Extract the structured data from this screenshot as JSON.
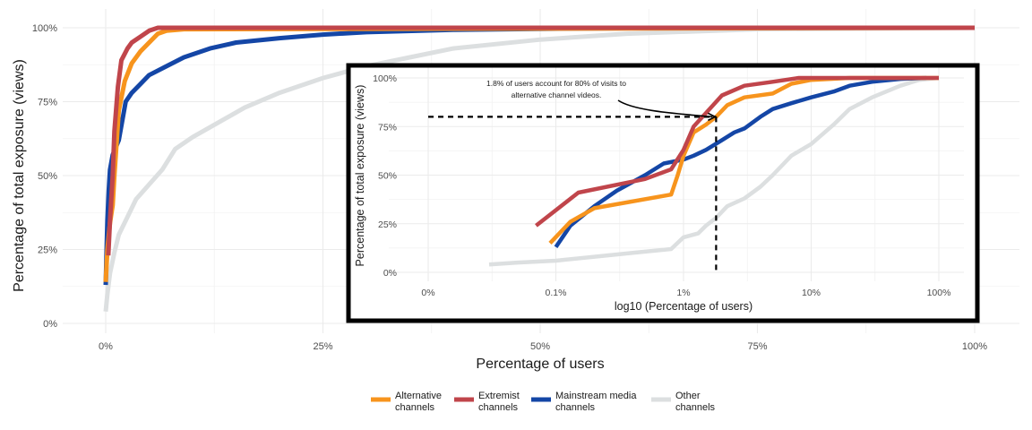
{
  "chart_data": [
    {
      "type": "line",
      "xlabel": "Percentage of users",
      "ylabel": "Percentage of total exposure (views)",
      "xlim": [
        0,
        100
      ],
      "ylim": [
        0,
        100
      ],
      "x_ticks": [
        0,
        25,
        50,
        75,
        100
      ],
      "x_tick_labels": [
        "0%",
        "25%",
        "50%",
        "75%",
        "100%"
      ],
      "y_ticks": [
        0,
        25,
        50,
        75,
        100
      ],
      "y_tick_labels": [
        "0%",
        "25%",
        "50%",
        "75%",
        "100%"
      ],
      "grid": true,
      "legend_position": "bottom",
      "series": [
        {
          "name": "Other channels",
          "color": "#dcdfe0",
          "points": [
            [
              0,
              4
            ],
            [
              0.2,
              10
            ],
            [
              0.5,
              17
            ],
            [
              1,
              24
            ],
            [
              1.5,
              30
            ],
            [
              2.5,
              36
            ],
            [
              3.5,
              42
            ],
            [
              5,
              47
            ],
            [
              6.5,
              52
            ],
            [
              8,
              59
            ],
            [
              10,
              63
            ],
            [
              13,
              68
            ],
            [
              16,
              73
            ],
            [
              20,
              78
            ],
            [
              25,
              83
            ],
            [
              30,
              87
            ],
            [
              35,
              90
            ],
            [
              40,
              93
            ],
            [
              50,
              96
            ],
            [
              60,
              98
            ],
            [
              75,
              99.5
            ],
            [
              100,
              100
            ]
          ]
        },
        {
          "name": "Mainstream media channels",
          "color": "#1446a6",
          "points": [
            [
              0,
              13
            ],
            [
              0.1,
              25
            ],
            [
              0.2,
              35
            ],
            [
              0.35,
              45
            ],
            [
              0.5,
              52
            ],
            [
              0.8,
              57
            ],
            [
              1.5,
              62
            ],
            [
              2.3,
              75
            ],
            [
              3,
              78
            ],
            [
              4,
              81
            ],
            [
              5,
              84
            ],
            [
              7,
              87
            ],
            [
              9,
              90
            ],
            [
              12,
              93
            ],
            [
              15,
              95
            ],
            [
              20,
              96.5
            ],
            [
              25,
              97.7
            ],
            [
              30,
              98.5
            ],
            [
              40,
              99.3
            ],
            [
              55,
              99.8
            ],
            [
              75,
              100
            ],
            [
              100,
              100
            ]
          ]
        },
        {
          "name": "Alternative channels",
          "color": "#f7941d",
          "points": [
            [
              0,
              14
            ],
            [
              0.2,
              25
            ],
            [
              0.5,
              34
            ],
            [
              0.8,
              40
            ],
            [
              1,
              50
            ],
            [
              1.5,
              72
            ],
            [
              2.2,
              82
            ],
            [
              3,
              88
            ],
            [
              4,
              92
            ],
            [
              5,
              95
            ],
            [
              6,
              98
            ],
            [
              7,
              99
            ],
            [
              9,
              99.5
            ],
            [
              100,
              100
            ]
          ]
        },
        {
          "name": "Extremist channels",
          "color": "#c0454b",
          "points": [
            [
              0.3,
              23
            ],
            [
              0.5,
              35
            ],
            [
              0.8,
              50
            ],
            [
              1,
              65
            ],
            [
              1.4,
              80
            ],
            [
              1.8,
              89
            ],
            [
              2.5,
              93
            ],
            [
              3,
              95
            ],
            [
              4,
              97
            ],
            [
              5,
              99
            ],
            [
              6,
              100
            ],
            [
              100,
              100
            ]
          ]
        }
      ]
    },
    {
      "type": "line",
      "xlabel": "log10 (Percentage of users)",
      "ylabel": "Percentage of total exposure (views)",
      "x_scale": "log",
      "xlim": [
        0.01,
        100
      ],
      "ylim": [
        0,
        100
      ],
      "x_ticks": [
        0.01,
        0.1,
        1,
        10,
        100
      ],
      "x_tick_labels": [
        "0%",
        "0.1%",
        "1%",
        "10%",
        "100%"
      ],
      "y_ticks": [
        0,
        25,
        50,
        75,
        100
      ],
      "y_tick_labels": [
        "0%",
        "25%",
        "50%",
        "75%",
        "100%"
      ],
      "grid": true,
      "annotation": {
        "line1": "1.8% of users account for 80% of visits to",
        "line2": "alternative channel videos.",
        "target_x": 1.8,
        "target_y": 80
      },
      "series": [
        {
          "name": "Other channels",
          "color": "#dcdfe0",
          "points": [
            [
              0.03,
              4
            ],
            [
              0.05,
              5
            ],
            [
              0.1,
              6
            ],
            [
              0.2,
              8
            ],
            [
              0.4,
              10
            ],
            [
              0.8,
              12
            ],
            [
              1,
              18
            ],
            [
              1.3,
              20
            ],
            [
              1.5,
              24
            ],
            [
              1.8,
              28
            ],
            [
              2.2,
              34
            ],
            [
              3,
              38
            ],
            [
              4,
              44
            ],
            [
              5,
              50
            ],
            [
              7,
              60
            ],
            [
              10,
              66
            ],
            [
              15,
              76
            ],
            [
              20,
              84
            ],
            [
              30,
              90
            ],
            [
              50,
              96
            ],
            [
              70,
              99
            ],
            [
              100,
              100
            ]
          ]
        },
        {
          "name": "Mainstream media channels",
          "color": "#1446a6",
          "points": [
            [
              0.1,
              13
            ],
            [
              0.13,
              24
            ],
            [
              0.2,
              34
            ],
            [
              0.3,
              42
            ],
            [
              0.5,
              50
            ],
            [
              0.7,
              56
            ],
            [
              1,
              58
            ],
            [
              1.2,
              60
            ],
            [
              1.5,
              63
            ],
            [
              2,
              68
            ],
            [
              2.5,
              72
            ],
            [
              3,
              74
            ],
            [
              4,
              80
            ],
            [
              5,
              84
            ],
            [
              7,
              87
            ],
            [
              10,
              90
            ],
            [
              15,
              93
            ],
            [
              20,
              96
            ],
            [
              30,
              98
            ],
            [
              50,
              99.5
            ],
            [
              80,
              100
            ]
          ]
        },
        {
          "name": "Alternative channels",
          "color": "#f7941d",
          "points": [
            [
              0.09,
              15
            ],
            [
              0.13,
              26
            ],
            [
              0.2,
              33
            ],
            [
              0.8,
              40
            ],
            [
              0.9,
              50
            ],
            [
              1,
              60
            ],
            [
              1.2,
              72
            ],
            [
              1.5,
              76
            ],
            [
              1.8,
              80
            ],
            [
              2.2,
              86
            ],
            [
              3,
              90
            ],
            [
              5,
              92
            ],
            [
              7,
              97
            ],
            [
              10,
              99
            ],
            [
              20,
              100
            ],
            [
              100,
              100
            ]
          ]
        },
        {
          "name": "Extremist channels",
          "color": "#c0454b",
          "points": [
            [
              0.07,
              24
            ],
            [
              0.15,
              41
            ],
            [
              0.5,
              48
            ],
            [
              0.8,
              53
            ],
            [
              1,
              63
            ],
            [
              1.2,
              75
            ],
            [
              1.5,
              82
            ],
            [
              2,
              91
            ],
            [
              3,
              96
            ],
            [
              5,
              98
            ],
            [
              8,
              100
            ],
            [
              100,
              100
            ]
          ]
        }
      ]
    }
  ],
  "legend": [
    {
      "line1": "Alternative",
      "line2": "channels",
      "color": "#f7941d"
    },
    {
      "line1": "Extremist",
      "line2": "channels",
      "color": "#c0454b"
    },
    {
      "line1": "Mainstream media",
      "line2": "channels",
      "color": "#1446a6"
    },
    {
      "line1": "Other",
      "line2": "channels",
      "color": "#dcdfe0"
    }
  ]
}
